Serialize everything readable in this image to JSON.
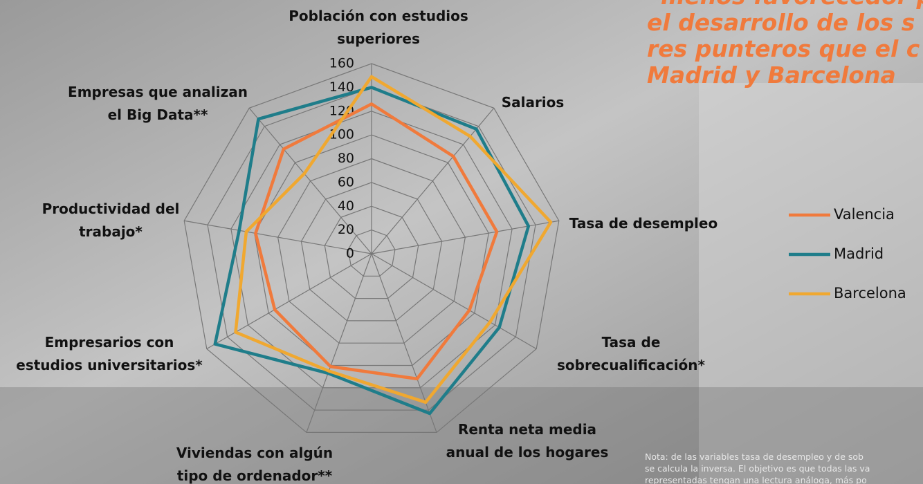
{
  "chart_data": {
    "type": "radar",
    "headline": [
      "menos favorecedor p",
      "el desarrollo de los s",
      "res punteros que el c",
      "Madrid y Barcelona"
    ],
    "categories": [
      [
        "Población con estudios",
        "superiores"
      ],
      [
        "Salarios"
      ],
      [
        "Tasa de desempleo"
      ],
      [
        "Tasa de",
        "sobrecualificación*"
      ],
      [
        "Renta neta media",
        "anual de los hogares"
      ],
      [
        "Viviendas con algún",
        "tipo de ordenador**"
      ],
      [
        "Empresarios con",
        "estudios universitarios*"
      ],
      [
        "Productividad del",
        "trabajo*"
      ],
      [
        "Empresas que analizan",
        "el Big Data**"
      ]
    ],
    "series": [
      {
        "name": "Valencia",
        "color": "#f07a3c",
        "values": [
          126,
          107,
          107,
          95,
          112,
          101,
          94,
          99,
          115
        ]
      },
      {
        "name": "Madrid",
        "color": "#1f7d8a",
        "values": [
          140,
          137,
          134,
          124,
          143,
          107,
          152,
          113,
          148
        ]
      },
      {
        "name": "Barcelona",
        "color": "#f0a830",
        "values": [
          149,
          129,
          153,
          115,
          133,
          105,
          132,
          107,
          88
        ]
      }
    ],
    "ylim": [
      0,
      160
    ],
    "yticks": [
      0,
      20,
      40,
      60,
      80,
      100,
      120,
      140,
      160
    ],
    "note": [
      "Nota: de las variables tasa de desempleo y de sob",
      "se calcula la inversa. El objetivo es que todas las va",
      "representadas tengan una lectura análoga, más po"
    ]
  }
}
